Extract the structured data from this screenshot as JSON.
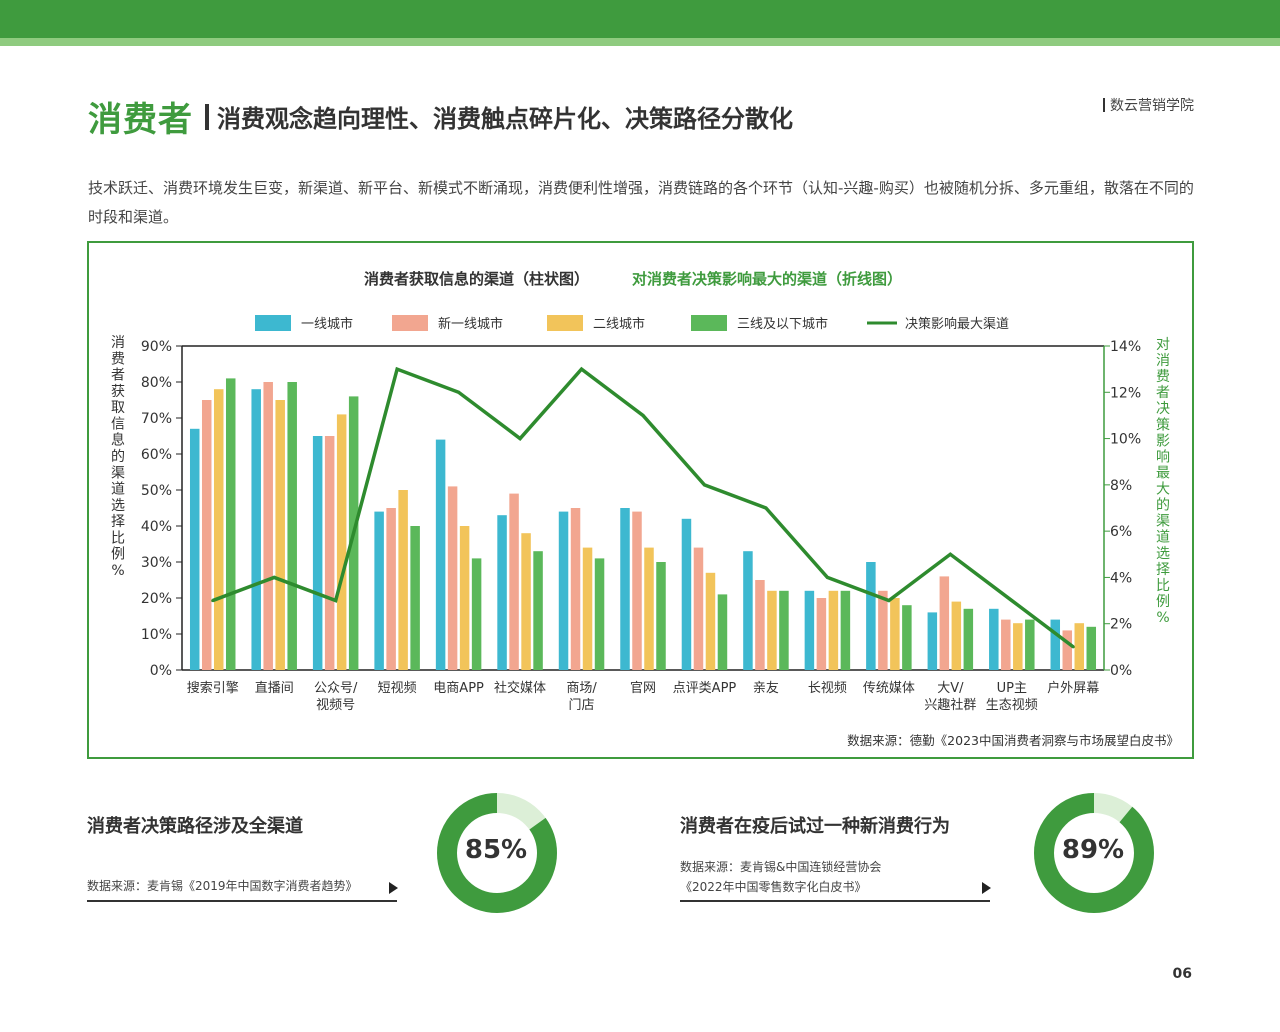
{
  "header": {
    "title_main": "消费者",
    "title_sub": "消费观念趋向理性、消费触点碎片化、决策路径分散化",
    "brand": "数云营销学院"
  },
  "intro": "技术跃迁、消费环境发生巨变，新渠道、新平台、新模式不断涌现，消费便利性增强，消费链路的各个环节（认知-兴趣-购买）也被随机分拆、多元重组，散落在不同的时段和渠道。",
  "colors": {
    "brand_green": "#3f9b3e",
    "light_green": "#8fcb7f",
    "donut_light": "#dcefd7",
    "tier1": "#3db8d0",
    "new_tier1": "#f2a690",
    "tier2": "#f2c45a",
    "tier3": "#5bb85a",
    "line": "#2e8b2e"
  },
  "chart_data": {
    "type": "bar+line",
    "title_bar": "消费者获取信息的渠道（柱状图）",
    "title_line": "对消费者决策影响最大的渠道（折线图）",
    "ylabel_left": "消费者获取信息的渠道选择比例%",
    "ylabel_right": "对消费者决策影响最大的渠道选择比例%",
    "ylim_left": [
      0,
      90
    ],
    "yticks_left": [
      "0%",
      "10%",
      "20%",
      "30%",
      "40%",
      "50%",
      "60%",
      "70%",
      "80%",
      "90%"
    ],
    "ylim_right": [
      0,
      14
    ],
    "yticks_right": [
      "0%",
      "2%",
      "4%",
      "6%",
      "8%",
      "10%",
      "12%",
      "14%"
    ],
    "categories": [
      [
        "搜索引擎"
      ],
      [
        "直播间"
      ],
      [
        "公众号/",
        "视频号"
      ],
      [
        "短视频"
      ],
      [
        "电商APP"
      ],
      [
        "社交媒体"
      ],
      [
        "商场/",
        "门店"
      ],
      [
        "官网"
      ],
      [
        "点评类APP"
      ],
      [
        "亲友"
      ],
      [
        "长视频"
      ],
      [
        "传统媒体"
      ],
      [
        "大V/",
        "兴趣社群"
      ],
      [
        "UP主",
        "生态视频"
      ],
      [
        "户外屏幕"
      ]
    ],
    "series": [
      {
        "name": "一线城市",
        "color": "#3db8d0",
        "values": [
          67,
          78,
          65,
          44,
          64,
          43,
          44,
          45,
          42,
          33,
          22,
          30,
          16,
          17,
          14
        ]
      },
      {
        "name": "新一线城市",
        "color": "#f2a690",
        "values": [
          75,
          80,
          65,
          45,
          51,
          49,
          45,
          44,
          34,
          25,
          20,
          22,
          26,
          14,
          11
        ]
      },
      {
        "name": "二线城市",
        "color": "#f2c45a",
        "values": [
          78,
          75,
          71,
          50,
          40,
          38,
          34,
          34,
          27,
          22,
          22,
          20,
          19,
          13,
          13
        ]
      },
      {
        "name": "三线及以下城市",
        "color": "#5bb85a",
        "values": [
          81,
          80,
          76,
          40,
          31,
          33,
          31,
          30,
          21,
          22,
          22,
          18,
          17,
          14,
          12
        ]
      }
    ],
    "line_series": {
      "name": "决策影响最大渠道",
      "color": "#2e8b2e",
      "values": [
        3,
        4,
        3,
        13,
        12,
        10,
        13,
        11,
        8,
        7,
        4,
        3,
        5,
        3,
        1
      ]
    },
    "source": "数据来源：德勤《2023中国消费者洞察与市场展望白皮书》"
  },
  "stats": [
    {
      "heading": "消费者决策路径涉及全渠道",
      "value": 85,
      "label": "85%",
      "source_lines": [
        "数据来源：麦肯锡《2019年中国数字消费者趋势》"
      ]
    },
    {
      "heading": "消费者在疫后试过一种新消费行为",
      "value": 89,
      "label": "89%",
      "source_lines": [
        "数据来源：麦肯锡&中国连锁经营协会",
        "《2022年中国零售数字化白皮书》"
      ]
    }
  ],
  "page_number": "06"
}
